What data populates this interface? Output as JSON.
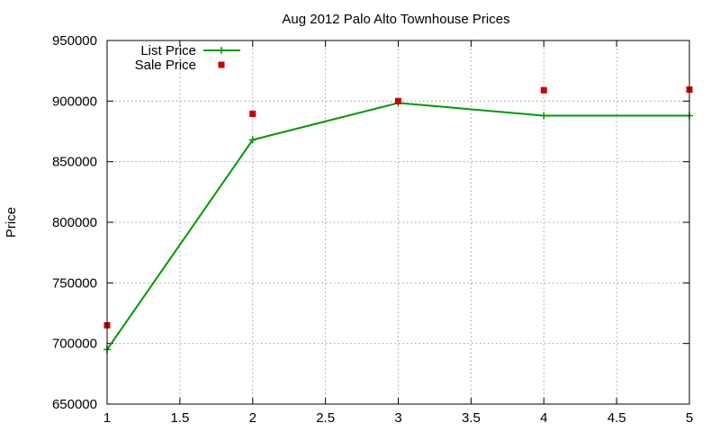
{
  "chart_data": {
    "type": "line",
    "title": "Aug 2012 Palo Alto Townhouse Prices",
    "xlabel": "",
    "ylabel": "Price",
    "xlim": [
      1,
      5
    ],
    "ylim": [
      650000,
      950000
    ],
    "xticks": [
      1,
      1.5,
      2,
      2.5,
      3,
      3.5,
      4,
      4.5,
      5
    ],
    "xtick_labels": [
      "1",
      "1.5",
      "2",
      "2.5",
      "3",
      "3.5",
      "4",
      "4.5",
      "5"
    ],
    "yticks": [
      650000,
      700000,
      750000,
      800000,
      850000,
      900000,
      950000
    ],
    "ytick_labels": [
      "650000",
      "700000",
      "750000",
      "800000",
      "850000",
      "900000",
      "950000"
    ],
    "grid": true,
    "legend_position": "top-left",
    "series": [
      {
        "name": "List Price",
        "style": "linespoints",
        "marker": "plus",
        "color": "#009900",
        "x": [
          1,
          2,
          3,
          4,
          5
        ],
        "y": [
          695000,
          868000,
          898500,
          888000,
          888000
        ]
      },
      {
        "name": "Sale Price",
        "style": "points",
        "marker": "square",
        "color": "#cc0000",
        "x": [
          1,
          2,
          3,
          4,
          5
        ],
        "y": [
          715000,
          889500,
          900000,
          909000,
          909500
        ]
      }
    ]
  }
}
